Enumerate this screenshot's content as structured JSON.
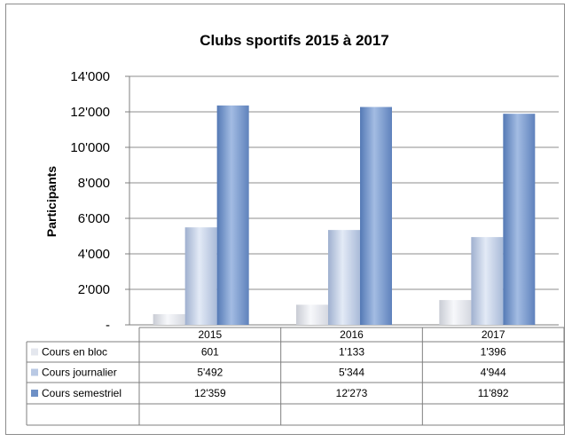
{
  "chart_data": {
    "type": "bar",
    "title": "Clubs sportifs 2015 à 2017",
    "ylabel": "Participants",
    "xlabel": "",
    "categories": [
      "2015",
      "2016",
      "2017"
    ],
    "ylim": [
      0,
      14000
    ],
    "yticks": [
      0,
      2000,
      4000,
      6000,
      8000,
      10000,
      12000,
      14000
    ],
    "ytick_labels": [
      "-",
      "2'000",
      "4'000",
      "6'000",
      "8'000",
      "10'000",
      "12'000",
      "14'000"
    ],
    "grid": true,
    "legend": "data-table",
    "series": [
      {
        "name": "Cours en bloc",
        "values": [
          601,
          1133,
          1396
        ],
        "labels": [
          "601",
          "1'133",
          "1'396"
        ],
        "color": "#e4e7ee"
      },
      {
        "name": "Cours journalier",
        "values": [
          5492,
          5344,
          4944
        ],
        "labels": [
          "5'492",
          "5'344",
          "4'944"
        ],
        "color": "#b9c9e4"
      },
      {
        "name": "Cours semestriel",
        "values": [
          12359,
          12273,
          11892
        ],
        "labels": [
          "12'359",
          "12'273",
          "11'892"
        ],
        "color": "#6e90c6"
      }
    ]
  }
}
